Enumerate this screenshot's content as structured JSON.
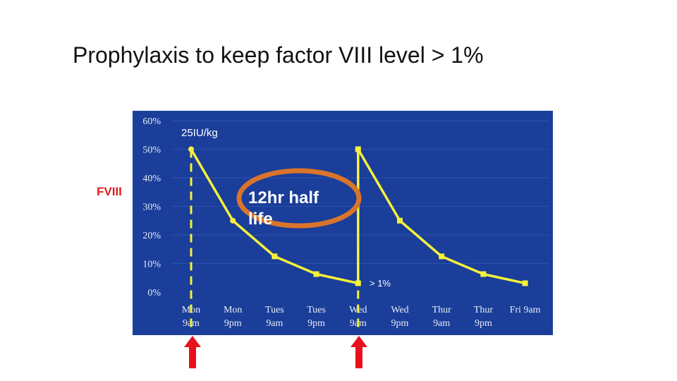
{
  "slide": {
    "title": "Prophylaxis to keep factor VIII level > 1%",
    "side_label": "FVIII"
  },
  "colors": {
    "panel_bg": "#1a3e99",
    "line": "#f5f23a",
    "dashed": "#f5f23a",
    "ellipse": "#d9742b",
    "arrow": "#e8101c",
    "axis_text": "#e6ecf7",
    "grid": "#2d52ad"
  },
  "chart_data": {
    "type": "line",
    "title": "",
    "xlabel": "",
    "ylabel": "FVIII",
    "ylim": [
      0,
      60
    ],
    "y_ticks": [
      "0%",
      "10%",
      "20%",
      "30%",
      "40%",
      "50%",
      "60%"
    ],
    "y_tick_values": [
      0,
      10,
      20,
      30,
      40,
      50,
      60
    ],
    "categories": [
      "Mon 9am",
      "Mon 9pm",
      "Tues 9am",
      "Tues 9pm",
      "Wed 9am",
      "Wed 9pm",
      "Thur 9am",
      "Thur 9pm",
      "Fri 9am"
    ],
    "x_tick_lines": [
      [
        "Mon",
        "9am"
      ],
      [
        "Mon",
        "9pm"
      ],
      [
        "Tues",
        "9am"
      ],
      [
        "Tues",
        "9pm"
      ],
      [
        "Wed",
        "9am"
      ],
      [
        "Wed",
        "9pm"
      ],
      [
        "Thur",
        "9am"
      ],
      [
        "Thur",
        "9pm"
      ],
      [
        "Fri 9am",
        ""
      ]
    ],
    "series": [
      {
        "name": "FVIII level",
        "points": [
          {
            "x": 0,
            "y": 50
          },
          {
            "x": 1,
            "y": 25
          },
          {
            "x": 2,
            "y": 12.5
          },
          {
            "x": 3,
            "y": 6.3
          },
          {
            "x": 4,
            "y": 3.1
          },
          {
            "x": 4,
            "y": 50
          },
          {
            "x": 5,
            "y": 25
          },
          {
            "x": 6,
            "y": 12.5
          },
          {
            "x": 7,
            "y": 6.3
          },
          {
            "x": 8,
            "y": 3.1
          }
        ]
      }
    ],
    "dose_markers_x": [
      0,
      4
    ],
    "annotations": {
      "dose": "25IU/kg",
      "half_life": "12hr half life",
      "threshold": "> 1%"
    }
  }
}
